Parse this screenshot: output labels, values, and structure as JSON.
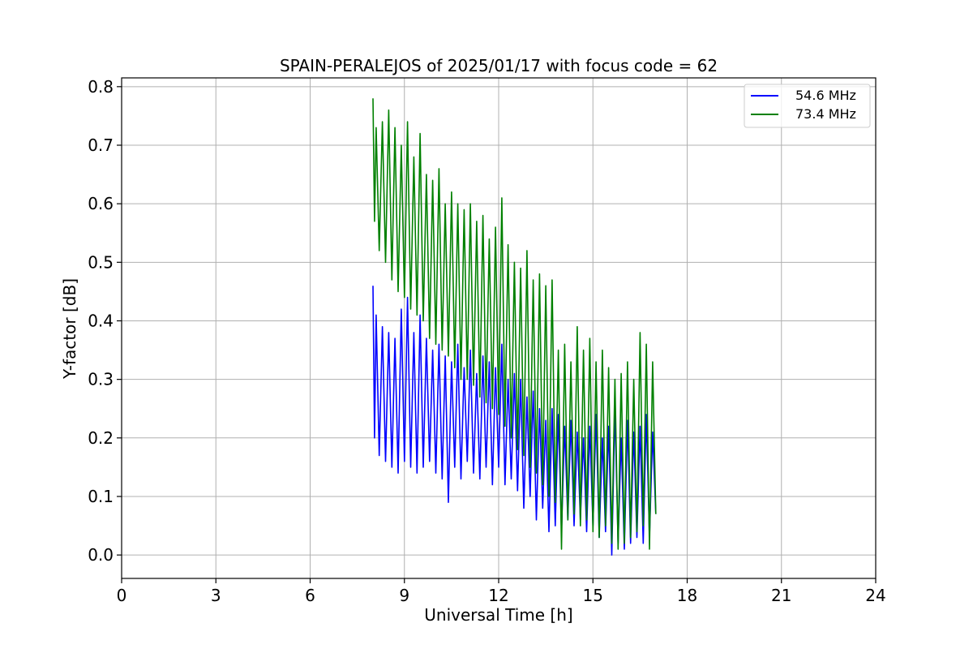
{
  "chart_data": {
    "type": "line",
    "title": "SPAIN-PERALEJOS of 2025/01/17 with focus code = 62",
    "xlabel": "Universal Time [h]",
    "ylabel": "Y-factor [dB]",
    "xlim": [
      0,
      24
    ],
    "ylim": [
      -0.04,
      0.815
    ],
    "xticks": [
      0,
      3,
      6,
      9,
      12,
      15,
      18,
      21,
      24
    ],
    "xtick_labels": [
      "0",
      "3",
      "6",
      "9",
      "12",
      "15",
      "18",
      "21",
      "24"
    ],
    "yticks": [
      0.0,
      0.1,
      0.2,
      0.3,
      0.4,
      0.5,
      0.6,
      0.7,
      0.8
    ],
    "ytick_labels": [
      "0.0",
      "0.1",
      "0.2",
      "0.3",
      "0.4",
      "0.5",
      "0.6",
      "0.7",
      "0.8"
    ],
    "grid": true,
    "legend_position": "top-right",
    "series": [
      {
        "name": "54.6 MHz",
        "color": "#0000ff",
        "x": [
          8.0,
          8.05,
          8.1,
          8.2,
          8.3,
          8.4,
          8.5,
          8.6,
          8.7,
          8.8,
          8.9,
          9.0,
          9.1,
          9.2,
          9.3,
          9.4,
          9.5,
          9.6,
          9.7,
          9.8,
          9.9,
          10.0,
          10.1,
          10.2,
          10.3,
          10.4,
          10.5,
          10.6,
          10.7,
          10.8,
          10.9,
          11.0,
          11.1,
          11.2,
          11.3,
          11.4,
          11.5,
          11.6,
          11.7,
          11.8,
          11.9,
          12.0,
          12.1,
          12.2,
          12.3,
          12.4,
          12.5,
          12.6,
          12.7,
          12.8,
          12.9,
          13.0,
          13.1,
          13.2,
          13.3,
          13.4,
          13.5,
          13.6,
          13.7,
          13.8,
          13.9,
          14.0,
          14.1,
          14.2,
          14.3,
          14.4,
          14.5,
          14.6,
          14.7,
          14.8,
          14.9,
          15.0,
          15.1,
          15.2,
          15.3,
          15.4,
          15.5,
          15.6,
          15.7,
          15.8,
          15.9,
          16.0,
          16.1,
          16.2,
          16.3,
          16.4,
          16.5,
          16.6,
          16.7,
          16.8,
          16.9,
          17.0
        ],
        "y": [
          0.46,
          0.2,
          0.41,
          0.17,
          0.39,
          0.16,
          0.38,
          0.15,
          0.37,
          0.14,
          0.42,
          0.16,
          0.44,
          0.15,
          0.38,
          0.14,
          0.41,
          0.15,
          0.37,
          0.16,
          0.35,
          0.14,
          0.36,
          0.13,
          0.34,
          0.09,
          0.33,
          0.15,
          0.36,
          0.13,
          0.32,
          0.16,
          0.35,
          0.14,
          0.31,
          0.13,
          0.34,
          0.15,
          0.33,
          0.12,
          0.32,
          0.15,
          0.36,
          0.12,
          0.3,
          0.13,
          0.31,
          0.11,
          0.3,
          0.08,
          0.27,
          0.1,
          0.28,
          0.06,
          0.25,
          0.08,
          0.23,
          0.04,
          0.25,
          0.05,
          0.24,
          0.04,
          0.22,
          0.06,
          0.23,
          0.05,
          0.21,
          0.06,
          0.2,
          0.04,
          0.22,
          0.05,
          0.24,
          0.03,
          0.2,
          0.04,
          0.22,
          0.0,
          0.25,
          0.02,
          0.2,
          0.01,
          0.23,
          0.02,
          0.21,
          0.03,
          0.22,
          0.02,
          0.24,
          0.03,
          0.21,
          0.07
        ]
      },
      {
        "name": "73.4 MHz",
        "color": "#008000",
        "x": [
          8.0,
          8.05,
          8.1,
          8.2,
          8.3,
          8.4,
          8.5,
          8.6,
          8.7,
          8.8,
          8.9,
          9.0,
          9.1,
          9.2,
          9.3,
          9.4,
          9.5,
          9.6,
          9.7,
          9.8,
          9.9,
          10.0,
          10.1,
          10.2,
          10.3,
          10.4,
          10.5,
          10.6,
          10.7,
          10.8,
          10.9,
          11.0,
          11.1,
          11.2,
          11.3,
          11.4,
          11.5,
          11.6,
          11.7,
          11.8,
          11.9,
          12.0,
          12.1,
          12.2,
          12.3,
          12.4,
          12.5,
          12.6,
          12.7,
          12.8,
          12.9,
          13.0,
          13.1,
          13.2,
          13.3,
          13.4,
          13.5,
          13.6,
          13.7,
          13.8,
          13.9,
          14.0,
          14.1,
          14.2,
          14.3,
          14.4,
          14.5,
          14.6,
          14.7,
          14.8,
          14.9,
          15.0,
          15.1,
          15.2,
          15.3,
          15.4,
          15.5,
          15.6,
          15.7,
          15.8,
          15.9,
          16.0,
          16.1,
          16.2,
          16.3,
          16.4,
          16.5,
          16.6,
          16.7,
          16.8,
          16.9,
          17.0
        ],
        "y": [
          0.78,
          0.57,
          0.73,
          0.52,
          0.74,
          0.5,
          0.76,
          0.47,
          0.73,
          0.45,
          0.7,
          0.44,
          0.74,
          0.42,
          0.68,
          0.41,
          0.72,
          0.4,
          0.65,
          0.37,
          0.64,
          0.36,
          0.66,
          0.35,
          0.6,
          0.34,
          0.62,
          0.32,
          0.6,
          0.3,
          0.59,
          0.3,
          0.6,
          0.29,
          0.57,
          0.27,
          0.58,
          0.26,
          0.54,
          0.25,
          0.56,
          0.24,
          0.61,
          0.22,
          0.53,
          0.2,
          0.5,
          0.18,
          0.49,
          0.17,
          0.52,
          0.15,
          0.47,
          0.14,
          0.48,
          0.12,
          0.46,
          0.1,
          0.47,
          0.09,
          0.35,
          0.01,
          0.36,
          0.06,
          0.33,
          0.07,
          0.39,
          0.05,
          0.35,
          0.06,
          0.37,
          0.04,
          0.33,
          0.03,
          0.35,
          0.05,
          0.32,
          0.02,
          0.3,
          0.01,
          0.31,
          0.02,
          0.33,
          0.03,
          0.3,
          0.04,
          0.38,
          0.05,
          0.36,
          0.01,
          0.33,
          0.07
        ]
      }
    ]
  }
}
